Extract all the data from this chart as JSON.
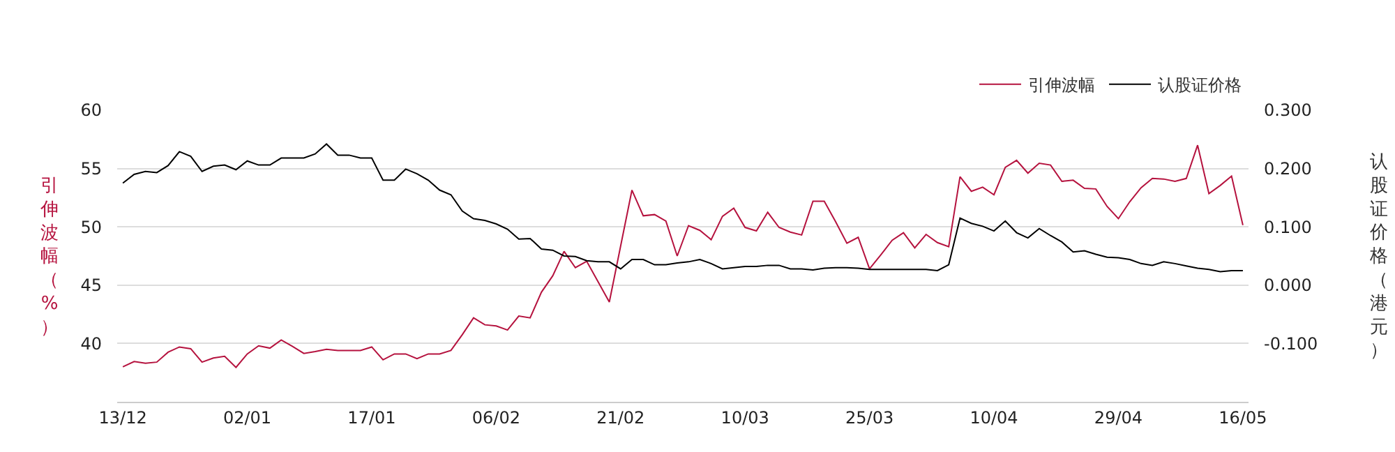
{
  "chart_data": {
    "type": "line",
    "ylabel": "引伸波幅（%）",
    "y2label": "认股证价格（港元）",
    "categories": [
      "13/12",
      null,
      null,
      null,
      null,
      null,
      null,
      null,
      null,
      null,
      null,
      "02/01",
      null,
      null,
      null,
      null,
      null,
      null,
      null,
      null,
      null,
      null,
      "17/01",
      null,
      null,
      null,
      null,
      null,
      null,
      null,
      null,
      null,
      null,
      "06/02",
      null,
      null,
      null,
      null,
      null,
      null,
      null,
      null,
      null,
      null,
      "21/02",
      null,
      null,
      null,
      null,
      null,
      null,
      null,
      null,
      null,
      null,
      "10/03",
      null,
      null,
      null,
      null,
      null,
      null,
      null,
      null,
      null,
      null,
      "25/03",
      null,
      null,
      null,
      null,
      null,
      null,
      null,
      null,
      null,
      null,
      "10/04",
      null,
      null,
      null,
      null,
      null,
      null,
      null,
      null,
      null,
      null,
      "29/04",
      null,
      null,
      null,
      null,
      null,
      null,
      null,
      null,
      null,
      null,
      "16/05"
    ],
    "series": [
      {
        "name": "引伸波幅",
        "color": "#b5123e",
        "values": [
          38.0,
          38.45,
          38.3,
          38.4,
          39.25,
          39.7,
          39.55,
          38.4,
          38.75,
          38.9,
          37.95,
          39.1,
          39.8,
          39.6,
          40.3,
          39.75,
          39.15,
          39.3,
          39.5,
          39.4,
          39.4,
          39.4,
          39.7,
          38.6,
          39.1,
          39.1,
          38.7,
          39.1,
          39.1,
          39.4,
          40.75,
          42.2,
          41.6,
          41.5,
          41.15,
          42.35,
          42.2,
          44.4,
          45.8,
          47.9,
          46.5,
          47.05,
          45.3,
          43.55,
          48.35,
          53.15,
          50.95,
          51.05,
          50.5,
          47.5,
          50.1,
          49.7,
          48.9,
          50.9,
          51.6,
          49.95,
          49.65,
          51.25,
          49.95,
          49.55,
          49.3,
          52.2,
          52.2,
          50.45,
          48.6,
          49.1,
          46.4,
          47.6,
          48.85,
          49.5,
          48.2,
          49.35,
          48.65,
          48.3,
          54.3,
          53.05,
          53.4,
          52.75,
          55.1,
          55.7,
          54.6,
          55.45,
          55.3,
          53.9,
          54.0,
          53.3,
          53.25,
          51.75,
          50.7,
          52.15,
          53.35,
          54.15,
          54.1,
          53.9,
          54.15,
          57.0,
          52.85,
          53.55,
          54.35,
          50.15
        ]
      },
      {
        "name": "认股证价格",
        "color": "#000000",
        "axis": "y2",
        "values": [
          0.175,
          0.19,
          0.195,
          0.193,
          0.205,
          0.229,
          0.221,
          0.195,
          0.204,
          0.206,
          0.198,
          0.213,
          0.206,
          0.206,
          0.218,
          0.218,
          0.218,
          0.225,
          0.242,
          0.223,
          0.223,
          0.218,
          0.218,
          0.18,
          0.18,
          0.199,
          0.191,
          0.18,
          0.163,
          0.155,
          0.127,
          0.114,
          0.111,
          0.105,
          0.096,
          0.079,
          0.08,
          0.062,
          0.06,
          0.05,
          0.049,
          0.042,
          0.04,
          0.04,
          0.028,
          0.044,
          0.044,
          0.035,
          0.035,
          0.038,
          0.04,
          0.044,
          0.037,
          0.028,
          0.03,
          0.032,
          0.032,
          0.034,
          0.034,
          0.028,
          0.028,
          0.026,
          0.029,
          0.03,
          0.03,
          0.029,
          0.027,
          0.027,
          0.027,
          0.027,
          0.027,
          0.027,
          0.025,
          0.035,
          0.115,
          0.106,
          0.101,
          0.093,
          0.11,
          0.09,
          0.081,
          0.097,
          0.085,
          0.074,
          0.057,
          0.059,
          0.053,
          0.048,
          0.047,
          0.044,
          0.037,
          0.034,
          0.04,
          0.037,
          0.033,
          0.029,
          0.027,
          0.023,
          0.025,
          0.025
        ]
      }
    ],
    "ylim": [
      35,
      60
    ],
    "yticks": [
      40,
      45,
      50,
      55,
      60
    ],
    "y2lim": [
      -0.2,
      0.3
    ],
    "y2ticks": [
      {
        "value": -0.1,
        "label": "-0.100"
      },
      {
        "value": 0,
        "label": "0.000"
      },
      {
        "value": 0.1,
        "label": "0.100"
      },
      {
        "value": 0.2,
        "label": "0.200"
      },
      {
        "value": 0.3,
        "label": "0.300"
      }
    ],
    "grid": "y",
    "legend": "top right",
    "marker": "none",
    "line_style": "solid"
  }
}
